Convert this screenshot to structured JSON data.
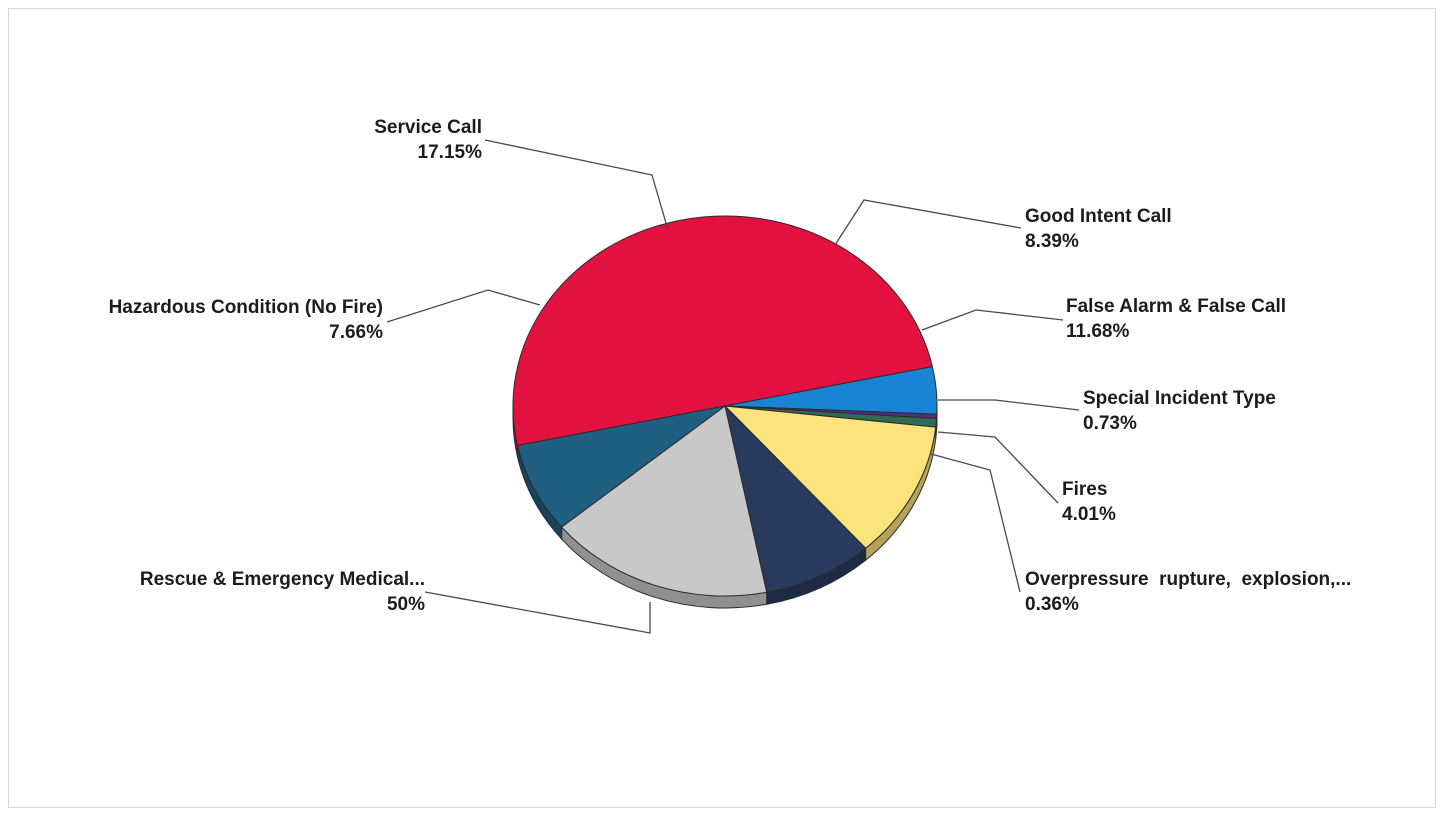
{
  "chart_data": {
    "type": "pie",
    "title": "",
    "slices": [
      {
        "label": "Rescue & Emergency Medical...",
        "percent_label": "50%",
        "value": 50.0,
        "color": "#e31140"
      },
      {
        "label": "Fires",
        "percent_label": "4.01%",
        "value": 4.01,
        "color": "#1a84d4"
      },
      {
        "label": "Overpressure  rupture,  explosion,...",
        "percent_label": "0.36%",
        "value": 0.36,
        "color": "#5a2a8a"
      },
      {
        "label": "Special Incident Type",
        "percent_label": "0.73%",
        "value": 0.73,
        "color": "#2f6b52"
      },
      {
        "label": "False Alarm & False Call",
        "percent_label": "11.68%",
        "value": 11.68,
        "color": "#fde37c"
      },
      {
        "label": "Good Intent Call",
        "percent_label": "8.39%",
        "value": 8.39,
        "color": "#283a5e"
      },
      {
        "label": "Service Call",
        "percent_label": "17.15%",
        "value": 17.15,
        "color": "#c8c8c8"
      },
      {
        "label": "Hazardous Condition (No Fire)",
        "percent_label": "7.66%",
        "value": 7.66,
        "color": "#1f5f82"
      }
    ]
  }
}
